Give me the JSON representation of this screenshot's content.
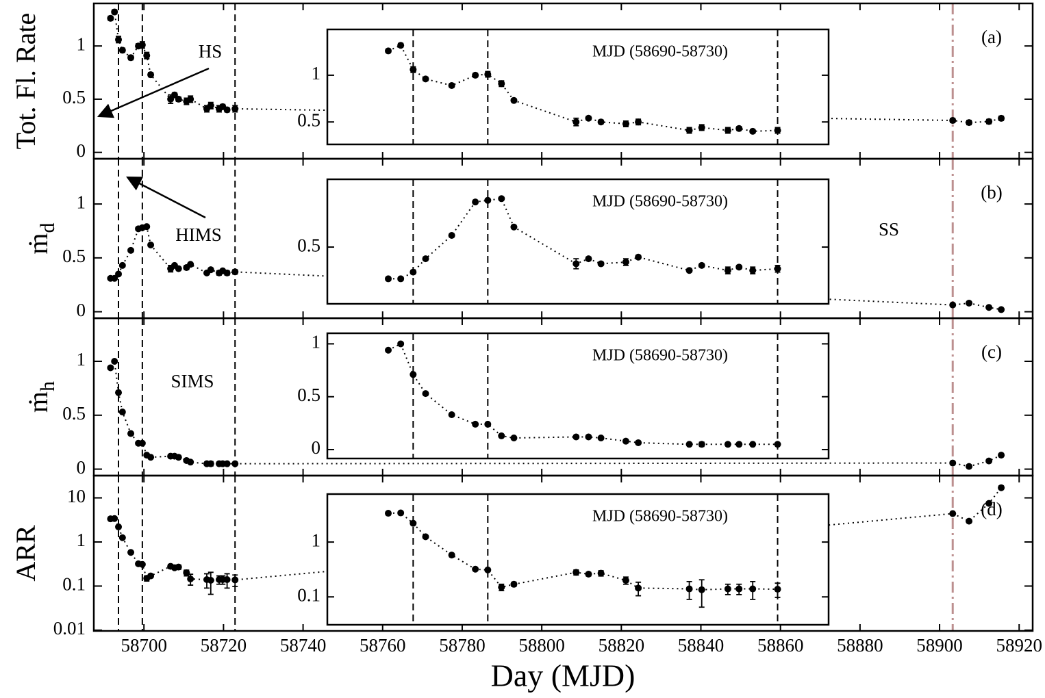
{
  "chart_data": {
    "type": "line",
    "xlabel": "Day (MJD)",
    "xlim": [
      58687.4,
      58923.4
    ],
    "xticks": [
      58700,
      58720,
      58740,
      58760,
      58780,
      58800,
      58820,
      58840,
      58860,
      58880,
      58900,
      58920
    ],
    "x": [
      58691.6,
      58692.6,
      58693.6,
      58694.6,
      58696.7,
      58698.6,
      58699.6,
      58700.7,
      58701.7,
      58706.7,
      58707.7,
      58708.7,
      58710.7,
      58711.7,
      58715.8,
      58716.8,
      58718.9,
      58719.8,
      58720.9,
      58722.9,
      58903.3,
      58907.4,
      58912.4,
      58915.5
    ],
    "vlines": [
      58693.6,
      58699.6,
      58722.9
    ],
    "vline_dashdot": 58903.3,
    "vline_dashdot_color": "#bc8f8f",
    "inset_label": "MJD (58690-58730)",
    "inset_xlim": [
      58686.7,
      58727.0
    ],
    "color": "#000000",
    "panels": [
      {
        "ylabel": "Tot. Fl. Rate",
        "label": "(a)",
        "log": false,
        "ylim": [
          -0.06,
          1.4
        ],
        "yticks": [
          0,
          0.5,
          1
        ],
        "values": [
          1.26,
          1.32,
          1.06,
          0.96,
          0.89,
          1.0,
          1.01,
          0.91,
          0.73,
          0.5,
          0.54,
          0.5,
          0.48,
          0.5,
          0.41,
          0.44,
          0.41,
          0.43,
          0.4,
          0.41,
          0.3,
          0.28,
          0.29,
          0.32
        ],
        "errors": [
          0.02,
          0.02,
          0.03,
          0.02,
          0.02,
          0.02,
          0.03,
          0.03,
          0.02,
          0.04,
          0.02,
          0.02,
          0.03,
          0.03,
          0.03,
          0.03,
          0.03,
          0.02,
          0.02,
          0.03,
          0.02,
          0.02,
          0.02,
          0.02
        ],
        "inset": {
          "ylim": [
            0.26,
            1.49
          ],
          "yticks": [
            0.5,
            1
          ]
        }
      },
      {
        "ylabel": "ṁ",
        "ylabel_sub": "d",
        "label": "(b)",
        "log": false,
        "ylim": [
          -0.06,
          1.42
        ],
        "yticks": [
          0,
          0.5,
          1
        ],
        "values": [
          0.31,
          0.31,
          0.35,
          0.43,
          0.57,
          0.77,
          0.78,
          0.79,
          0.62,
          0.4,
          0.43,
          0.4,
          0.41,
          0.44,
          0.36,
          0.39,
          0.36,
          0.38,
          0.36,
          0.37,
          0.063,
          0.08,
          0.04,
          0.02
        ],
        "errors": [
          0.01,
          0.01,
          0.01,
          0.01,
          0.01,
          0.01,
          0.01,
          0.01,
          0.01,
          0.03,
          0.01,
          0.01,
          0.02,
          0.01,
          0.01,
          0.01,
          0.02,
          0.01,
          0.02,
          0.02,
          0.01,
          0.01,
          0.01,
          0.01
        ],
        "inset": {
          "ylim": [
            0.16,
            0.906
          ],
          "yticks": [
            0.5
          ]
        }
      },
      {
        "ylabel": "ṁ",
        "ylabel_sub": "h",
        "label": "(c)",
        "log": false,
        "ylim": [
          -0.06,
          1.4
        ],
        "yticks": [
          0,
          0.5,
          1
        ],
        "values": [
          0.94,
          1.0,
          0.71,
          0.53,
          0.33,
          0.24,
          0.24,
          0.13,
          0.11,
          0.12,
          0.12,
          0.11,
          0.08,
          0.065,
          0.05,
          0.05,
          0.05,
          0.05,
          0.05,
          0.05,
          0.057,
          0.025,
          0.076,
          0.13
        ],
        "errors": [
          0.01,
          0.01,
          0.01,
          0.01,
          0.01,
          0.01,
          0.01,
          0.01,
          0.01,
          0.01,
          0.01,
          0.01,
          0.01,
          0.01,
          0.01,
          0.02,
          0.01,
          0.01,
          0.01,
          0.01,
          0.01,
          0.01,
          0.01,
          0.01
        ],
        "inset": {
          "ylim": [
            -0.084,
            1.1
          ],
          "yticks": [
            0,
            0.5,
            1
          ]
        }
      },
      {
        "ylabel": "ARR",
        "label": "(d)",
        "log": true,
        "ylim": [
          0.0096,
          32
        ],
        "yticks": [
          0.01,
          0.1,
          1,
          10
        ],
        "values": [
          3.35,
          3.4,
          2.2,
          1.25,
          0.58,
          0.32,
          0.31,
          0.15,
          0.17,
          0.28,
          0.26,
          0.27,
          0.2,
          0.145,
          0.14,
          0.135,
          0.14,
          0.14,
          0.14,
          0.138,
          4.4,
          2.96,
          7.5,
          17
        ],
        "errors": [
          0.2,
          0.2,
          0.15,
          0.08,
          0.04,
          0.02,
          0.02,
          0.02,
          0.015,
          0.03,
          0.02,
          0.03,
          0.03,
          0.04,
          0.05,
          0.07,
          0.03,
          0.03,
          0.05,
          0.04,
          0.3,
          0.2,
          0.5,
          1.5
        ],
        "inset": {
          "ylim": [
            0.031,
            7.5
          ],
          "yticks": [
            0.1,
            1
          ]
        }
      }
    ],
    "annotations": [
      {
        "text": "HS"
      },
      {
        "text": "HIMS"
      },
      {
        "text": "SIMS"
      },
      {
        "text": "SS"
      }
    ]
  }
}
